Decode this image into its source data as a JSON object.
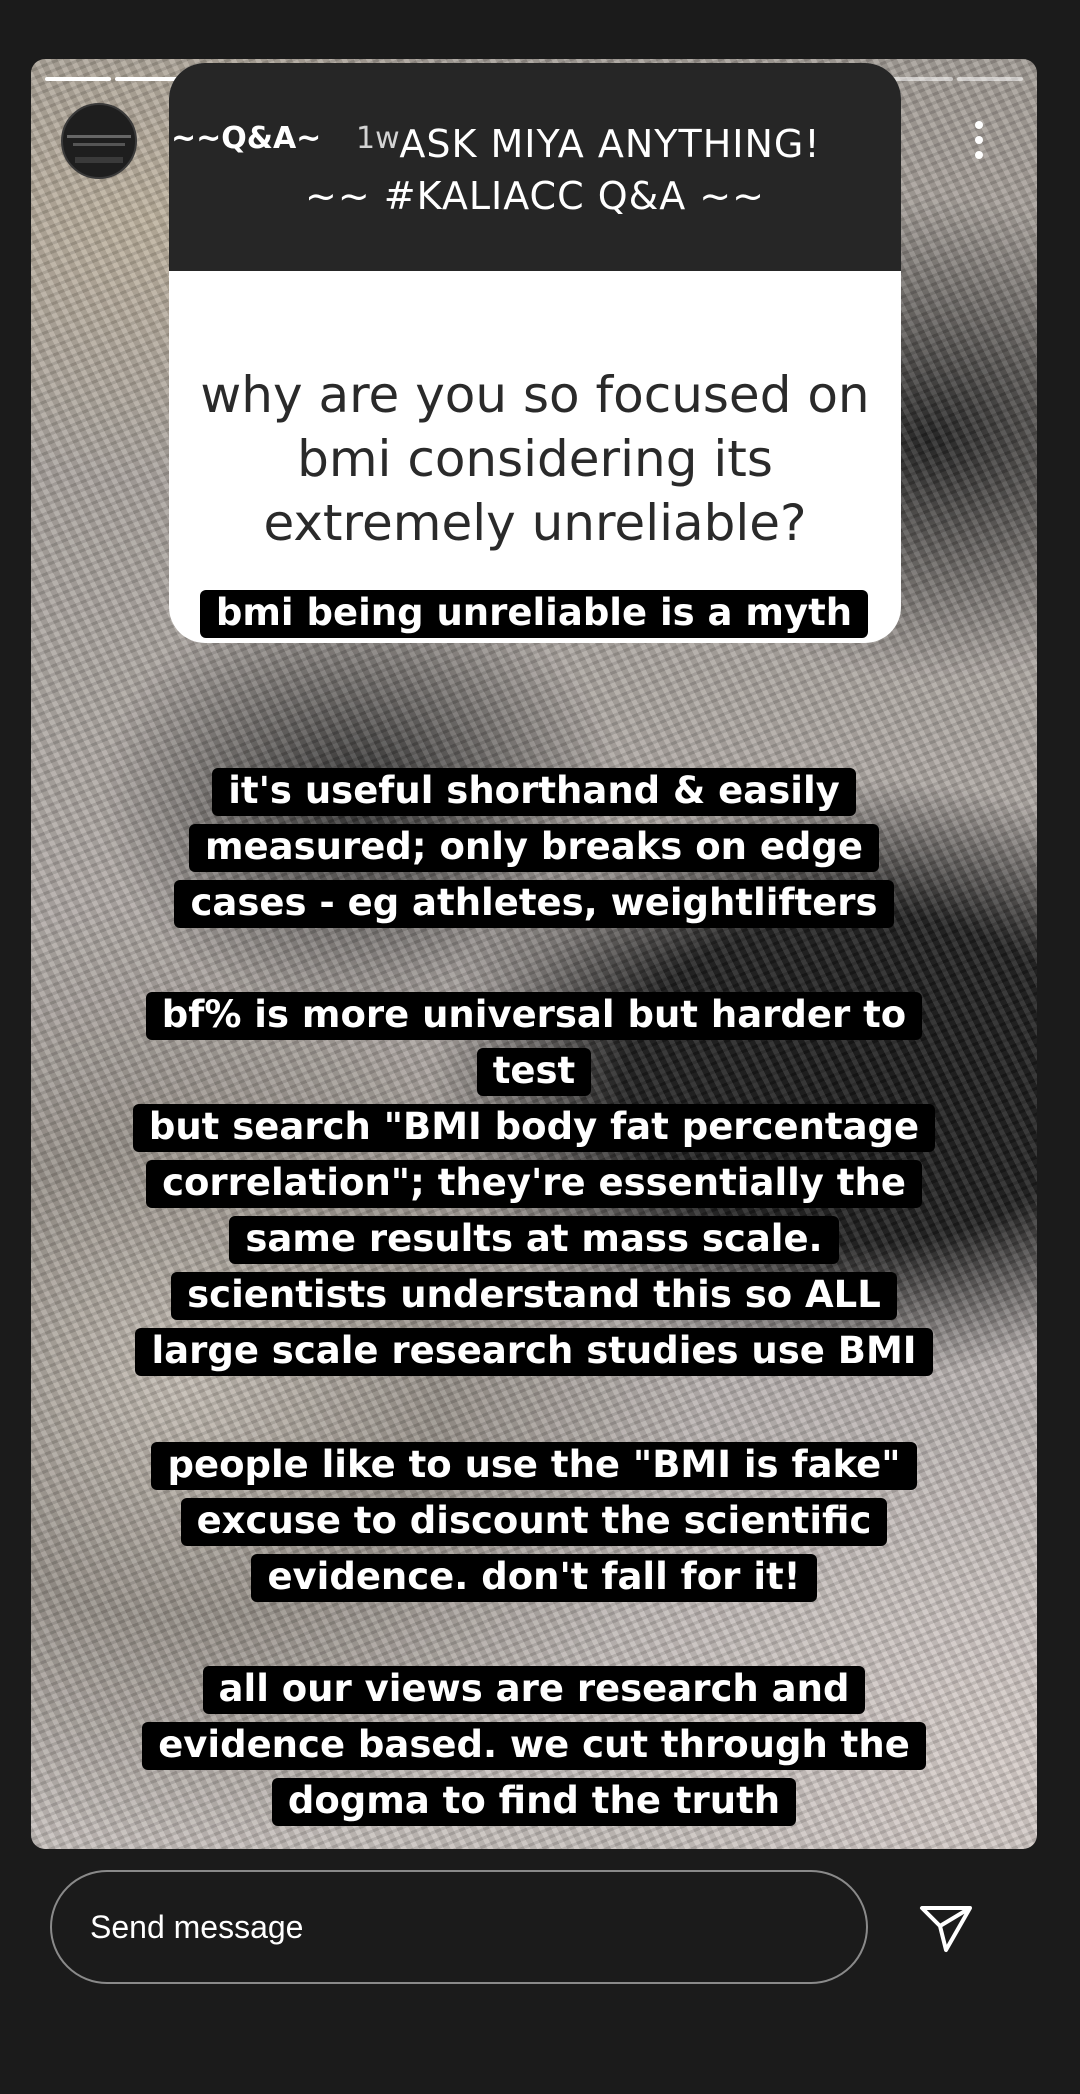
{
  "story": {
    "progress_segments": 14,
    "progress_done": 10,
    "author": {
      "username": "~~Q&A~",
      "timestamp": "1w"
    },
    "menu_icon": "more-vertical-icon"
  },
  "question_card": {
    "header_line1": "ASK MIYA ANYTHING!",
    "header_line2": "~~ #KALIACC Q&A ~~",
    "question": "why are you so focused on bmi considering its extremely unreliable?"
  },
  "answers": [
    {
      "lines": [
        "bmi being unreliable is a myth"
      ]
    },
    {
      "lines": [
        "it's useful shorthand & easily",
        "measured; only breaks on edge",
        "cases - eg athletes, weightlifters"
      ]
    },
    {
      "lines": [
        "bf% is more universal but harder to",
        "test",
        "but search \"BMI body fat percentage",
        "correlation\"; they're essentially the",
        "same results at mass scale.",
        "scientists understand this so ALL",
        "large scale research studies use BMI"
      ]
    },
    {
      "lines": [
        "people like to use the \"BMI is fake\"",
        "excuse to discount the scientific",
        "evidence. don't fall for it!"
      ]
    },
    {
      "lines": [
        "all our views are research and",
        "evidence based. we cut through the",
        "dogma to find the truth"
      ]
    }
  ],
  "reply_bar": {
    "placeholder": "Send message",
    "send_icon": "paper-plane-icon"
  }
}
